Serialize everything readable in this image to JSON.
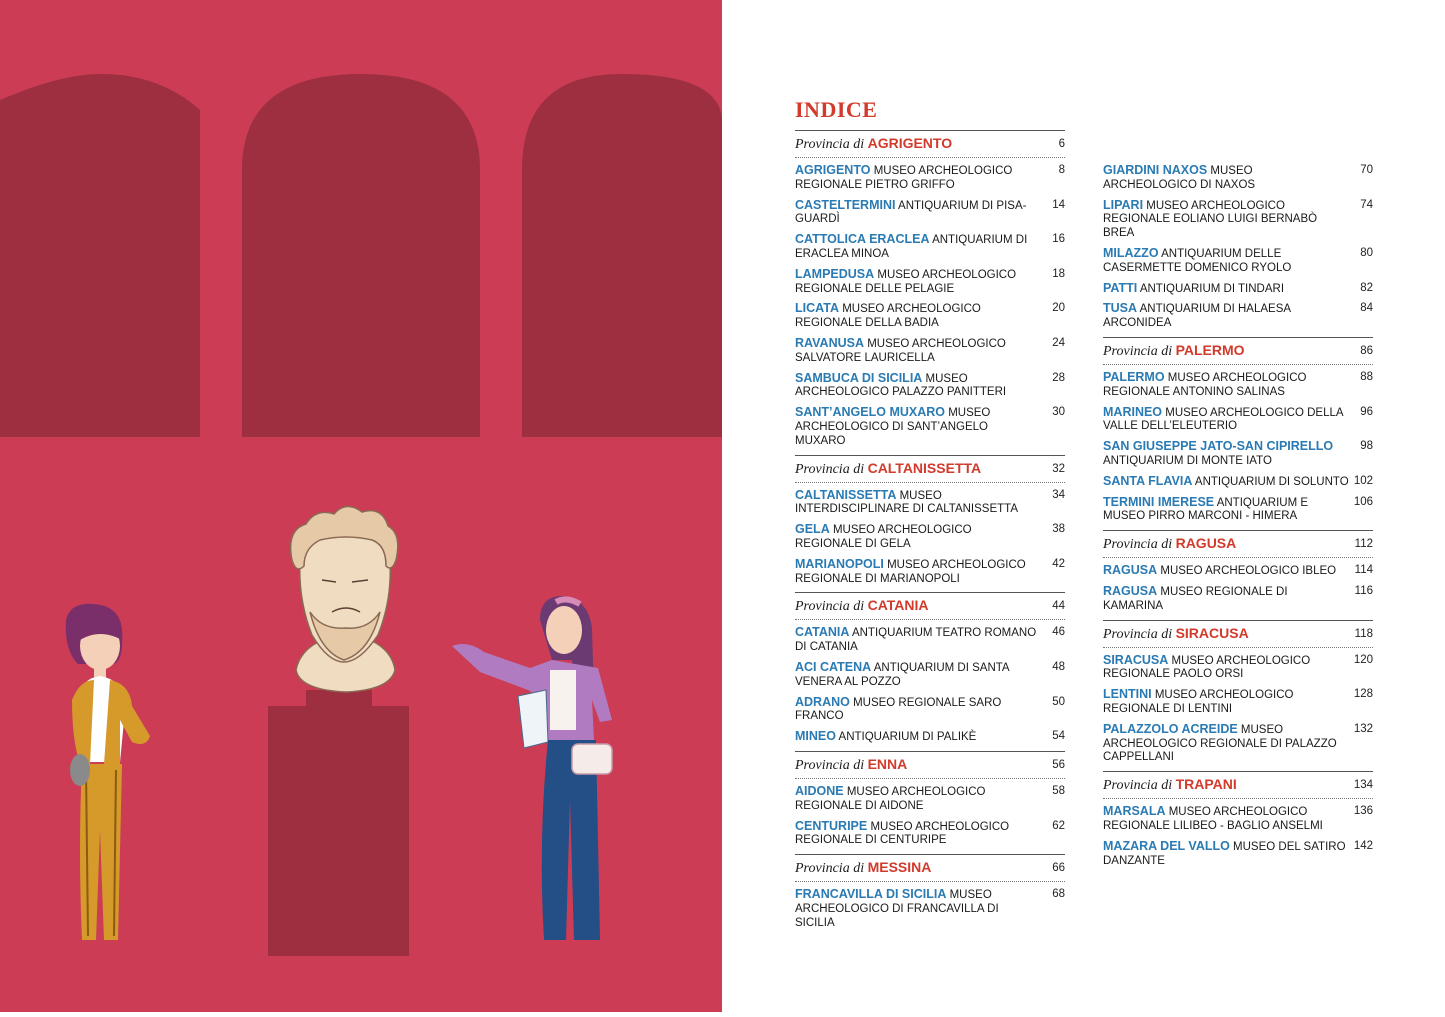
{
  "title": "INDICE",
  "provincia_prefix": "Provincia di",
  "colors": {
    "background_red": "#cc3d55",
    "arch_dark": "#9d2f40",
    "place_blue": "#2a7ab3",
    "province_red": "#d23a2b"
  },
  "left_column": [
    {
      "kind": "province",
      "name": "AGRIGENTO",
      "page": "6"
    },
    {
      "kind": "entry",
      "place": "AGRIGENTO",
      "desc": "MUSEO ARCHEOLOGICO REGIONALE PIETRO GRIFFO",
      "page": "8"
    },
    {
      "kind": "entry",
      "place": "CASTELTERMINI",
      "desc": "ANTIQUARIUM DI PISA-GUARDÌ",
      "page": "14"
    },
    {
      "kind": "entry",
      "place": "CATTOLICA ERACLEA",
      "desc": "ANTIQUARIUM DI ERACLEA MINOA",
      "page": "16"
    },
    {
      "kind": "entry",
      "place": "LAMPEDUSA",
      "desc": "MUSEO ARCHEOLOGICO REGIONALE DELLE PELAGIE",
      "page": "18"
    },
    {
      "kind": "entry",
      "place": "LICATA",
      "desc": "MUSEO ARCHEOLOGICO REGIONALE DELLA BADIA",
      "page": "20"
    },
    {
      "kind": "entry",
      "place": "RAVANUSA",
      "desc": "MUSEO ARCHEOLOGICO SALVATORE LAURICELLA",
      "page": "24"
    },
    {
      "kind": "entry",
      "place": "SAMBUCA DI SICILIA",
      "desc": "MUSEO ARCHEOLOGICO PALAZZO PANITTERI",
      "page": "28"
    },
    {
      "kind": "entry",
      "place": "SANT’ANGELO MUXARO",
      "desc": "MUSEO ARCHEOLOGICO DI SANT’ANGELO MUXARO",
      "page": "30"
    },
    {
      "kind": "province",
      "name": "CALTANISSETTA",
      "page": "32"
    },
    {
      "kind": "entry",
      "place": "CALTANISSETTA",
      "desc": "MUSEO INTERDISCIPLINARE DI CALTANISSETTA",
      "page": "34"
    },
    {
      "kind": "entry",
      "place": "GELA",
      "desc": "MUSEO ARCHEOLOGICO REGIONALE DI GELA",
      "page": "38"
    },
    {
      "kind": "entry",
      "place": "MARIANOPOLI",
      "desc": "MUSEO ARCHEOLOGICO REGIONALE DI MARIANOPOLI",
      "page": "42"
    },
    {
      "kind": "province",
      "name": "CATANIA",
      "page": "44"
    },
    {
      "kind": "entry",
      "place": "CATANIA",
      "desc": "ANTIQUARIUM TEATRO ROMANO DI CATANIA",
      "page": "46"
    },
    {
      "kind": "entry",
      "place": "ACI CATENA",
      "desc": "ANTIQUARIUM DI SANTA VENERA AL POZZO",
      "page": "48"
    },
    {
      "kind": "entry",
      "place": "ADRANO",
      "desc": "MUSEO REGIONALE SARO FRANCO",
      "page": "50"
    },
    {
      "kind": "entry",
      "place": "MINEO",
      "desc": "ANTIQUARIUM DI PALIKÈ",
      "page": "54"
    },
    {
      "kind": "province",
      "name": "ENNA",
      "page": "56"
    },
    {
      "kind": "entry",
      "place": "AIDONE",
      "desc": "MUSEO ARCHEOLOGICO REGIONALE DI AIDONE",
      "page": "58"
    },
    {
      "kind": "entry",
      "place": "CENTURIPE",
      "desc": "MUSEO ARCHEOLOGICO REGIONALE DI CENTURIPE",
      "page": "62"
    },
    {
      "kind": "province",
      "name": "MESSINA",
      "page": "66"
    },
    {
      "kind": "entry",
      "place": "FRANCAVILLA DI SICILIA",
      "desc": "MUSEO ARCHEOLOGICO DI FRANCAVILLA DI SICILIA",
      "page": "68"
    }
  ],
  "right_column": [
    {
      "kind": "entry",
      "place": "GIARDINI NAXOS",
      "desc": "MUSEO ARCHEOLOGICO DI NAXOS",
      "page": "70"
    },
    {
      "kind": "entry",
      "place": "LIPARI",
      "desc": "MUSEO ARCHEOLOGICO REGIONALE EOLIANO LUIGI BERNABÒ BREA",
      "page": "74"
    },
    {
      "kind": "entry",
      "place": "MILAZZO",
      "desc": "ANTIQUARIUM DELLE CASERMETTE DOMENICO RYOLO",
      "page": "80"
    },
    {
      "kind": "entry",
      "place": "PATTI",
      "desc": "ANTIQUARIUM DI TINDARI",
      "page": "82"
    },
    {
      "kind": "entry",
      "place": "TUSA",
      "desc": "ANTIQUARIUM DI HALAESA ARCONIDEA",
      "page": "84"
    },
    {
      "kind": "province",
      "name": "PALERMO",
      "page": "86"
    },
    {
      "kind": "entry",
      "place": "PALERMO",
      "desc": "MUSEO ARCHEOLOGICO REGIONALE ANTONINO SALINAS",
      "page": "88"
    },
    {
      "kind": "entry",
      "place": "MARINEO",
      "desc": "MUSEO ARCHEOLOGICO DELLA VALLE DELL’ELEUTERIO",
      "page": "96"
    },
    {
      "kind": "entry",
      "place": "SAN GIUSEPPE JATO-SAN CIPIRELLO",
      "desc": "ANTIQUARIUM DI MONTE IATO",
      "page": "98"
    },
    {
      "kind": "entry",
      "place": "SANTA FLAVIA",
      "desc": "ANTIQUARIUM DI SOLUNTO",
      "page": "102"
    },
    {
      "kind": "entry",
      "place": "TERMINI IMERESE",
      "desc": "ANTIQUARIUM E MUSEO PIRRO MARCONI - HIMERA",
      "page": "106"
    },
    {
      "kind": "province",
      "name": "RAGUSA",
      "page": "112"
    },
    {
      "kind": "entry",
      "place": "RAGUSA",
      "desc": "MUSEO ARCHEOLOGICO IBLEO",
      "page": "114"
    },
    {
      "kind": "entry",
      "place": "RAGUSA",
      "desc": "MUSEO REGIONALE DI KAMARINA",
      "page": "116"
    },
    {
      "kind": "province",
      "name": "SIRACUSA",
      "page": "118"
    },
    {
      "kind": "entry",
      "place": "SIRACUSA",
      "desc": "MUSEO ARCHEOLOGICO REGIONALE PAOLO ORSI",
      "page": "120"
    },
    {
      "kind": "entry",
      "place": "LENTINI",
      "desc": "MUSEO ARCHEOLOGICO REGIONALE DI LENTINI",
      "page": "128"
    },
    {
      "kind": "entry",
      "place": "PALAZZOLO ACREIDE",
      "desc": "MUSEO ARCHEOLOGICO REGIONALE DI PALAZZO CAPPELLANI",
      "page": "132"
    },
    {
      "kind": "province",
      "name": "TRAPANI",
      "page": "134"
    },
    {
      "kind": "entry",
      "place": "MARSALA",
      "desc": "MUSEO ARCHEOLOGICO REGIONALE LILIBEO - BAGLIO ANSELMI",
      "page": "136"
    },
    {
      "kind": "entry",
      "place": "MAZARA DEL VALLO",
      "desc": "MUSEO DEL SATIRO DANZANTE",
      "page": "142"
    }
  ]
}
